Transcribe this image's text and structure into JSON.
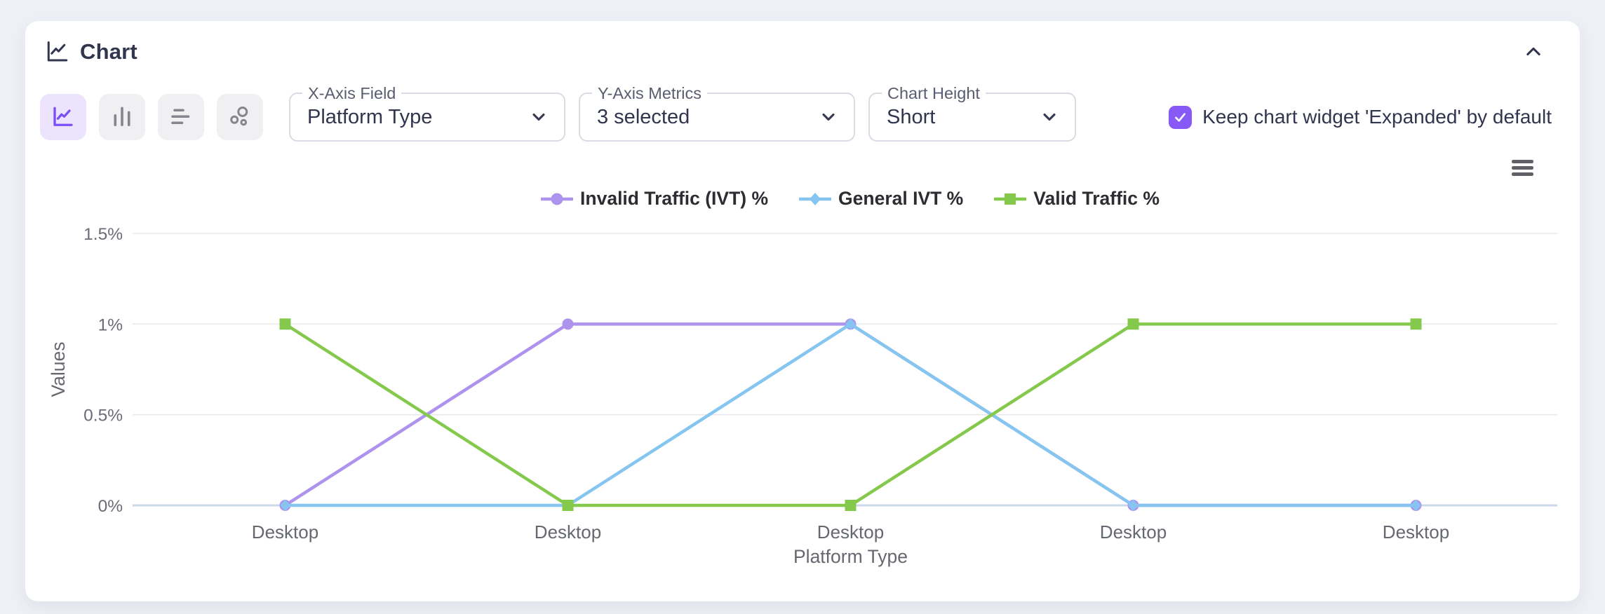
{
  "header": {
    "title": "Chart",
    "collapse_icon": "chevron-up"
  },
  "toolbar": {
    "chart_types": [
      {
        "name": "line",
        "selected": true
      },
      {
        "name": "bar",
        "selected": false
      },
      {
        "name": "horizontal-bar",
        "selected": false
      },
      {
        "name": "scatter",
        "selected": false
      }
    ],
    "selects": [
      {
        "label": "X-Axis Field",
        "value": "Platform Type"
      },
      {
        "label": "Y-Axis Metrics",
        "value": "3 selected"
      },
      {
        "label": "Chart Height",
        "value": "Short"
      }
    ],
    "checkbox": {
      "label": "Keep chart widget 'Expanded' by default",
      "checked": true,
      "color": "#8759f7"
    },
    "menu_icon": "hamburger"
  },
  "chart_data": {
    "type": "line",
    "categories": [
      "Desktop",
      "Desktop",
      "Desktop",
      "Desktop",
      "Desktop"
    ],
    "series": [
      {
        "name": "Invalid Traffic (IVT) %",
        "color": "#ae93ee",
        "marker": "circle",
        "values": [
          0,
          1,
          1,
          0,
          0
        ]
      },
      {
        "name": "General IVT %",
        "color": "#85c5f0",
        "marker": "diamond",
        "values": [
          0,
          0,
          1,
          0,
          0
        ]
      },
      {
        "name": "Valid Traffic %",
        "color": "#85c94c",
        "marker": "square",
        "values": [
          1,
          0,
          0,
          1,
          1
        ]
      }
    ],
    "xlabel": "Platform Type",
    "ylabel": "Values",
    "ylim": [
      0,
      1.5
    ],
    "yticks": [
      0,
      0.5,
      1,
      1.5
    ],
    "ytick_labels": [
      "0%",
      "0.5%",
      "1%",
      "1.5%"
    ],
    "legend_position": "top",
    "grid": true,
    "gridline_color": "#e9e9ed",
    "zero_line_color": "#ccd9ea"
  }
}
